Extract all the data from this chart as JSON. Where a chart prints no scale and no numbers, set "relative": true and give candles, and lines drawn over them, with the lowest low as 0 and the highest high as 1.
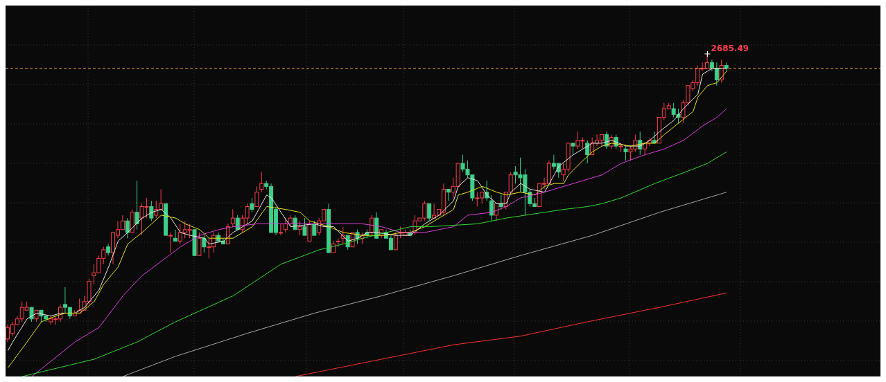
{
  "chart_data": {
    "type": "candlestick",
    "relative": true,
    "grid": true,
    "marker": "none",
    "categories": [
      null,
      null,
      null,
      null,
      null,
      null,
      null,
      null,
      null,
      null,
      null,
      null,
      null,
      null,
      null,
      null,
      null,
      null,
      null,
      null,
      null,
      null,
      null,
      null,
      null,
      null,
      null,
      null,
      null,
      null,
      null,
      null,
      null,
      null,
      null,
      null,
      null,
      null,
      null,
      null,
      null,
      null,
      null,
      null,
      null,
      null,
      null,
      null,
      null,
      null,
      null,
      null,
      null,
      null,
      null,
      null,
      null,
      null,
      null,
      null,
      null,
      null,
      null,
      null,
      null,
      null,
      null,
      null,
      null,
      null,
      null,
      null,
      null,
      null,
      null,
      null,
      null,
      null,
      null,
      null,
      null,
      null,
      null,
      null,
      null,
      null,
      null,
      null,
      null,
      null,
      null,
      null,
      null,
      null,
      null,
      null,
      null,
      null,
      null,
      null,
      null,
      null,
      null,
      null,
      null,
      null,
      null,
      null,
      null,
      null,
      null,
      null,
      null,
      null,
      null,
      null,
      null,
      null,
      null,
      null,
      null,
      null,
      null,
      null,
      null,
      null,
      null,
      null,
      null,
      null,
      null,
      null,
      null,
      null,
      null,
      null,
      null,
      null,
      null,
      null,
      null,
      null,
      null,
      null,
      null,
      null,
      null,
      null,
      null,
      null,
      null
    ],
    "ohlc": [
      [
        0.01,
        0.06,
        0,
        0.05
      ],
      [
        0.03,
        0.07,
        0.02,
        0.06
      ],
      [
        0.06,
        0.09,
        0.06,
        0.08
      ],
      [
        0.08,
        0.14,
        0.07,
        0.12
      ],
      [
        0.11,
        0.14,
        0.11,
        0.12
      ],
      [
        0.12,
        0.12,
        0.07,
        0.08
      ],
      [
        0.08,
        0.11,
        0.07,
        0.11
      ],
      [
        0.11,
        0.11,
        0.07,
        0.09
      ],
      [
        0.09,
        0.09,
        0.07,
        0.08
      ],
      [
        0.07,
        0.09,
        0.06,
        0.08
      ],
      [
        0.08,
        0.09,
        0.06,
        0.08
      ],
      [
        0.08,
        0.13,
        0.07,
        0.12
      ],
      [
        0.13,
        0.19,
        0.1,
        0.12
      ],
      [
        0.12,
        0.12,
        0.08,
        0.09
      ],
      [
        0.09,
        0.11,
        0.09,
        0.1
      ],
      [
        0.1,
        0.15,
        0.1,
        0.11
      ],
      [
        0.11,
        0.16,
        0.11,
        0.14
      ],
      [
        0.14,
        0.22,
        0.13,
        0.21
      ],
      [
        0.23,
        0.27,
        0.2,
        0.24
      ],
      [
        0.24,
        0.3,
        0.24,
        0.29
      ],
      [
        0.29,
        0.33,
        0.27,
        0.32
      ],
      [
        0.33,
        0.34,
        0.3,
        0.31
      ],
      [
        0.31,
        0.38,
        0.27,
        0.38
      ],
      [
        0.37,
        0.42,
        0.36,
        0.39
      ],
      [
        0.39,
        0.44,
        0.39,
        0.42
      ],
      [
        0.42,
        0.43,
        0.36,
        0.38
      ],
      [
        0.38,
        0.46,
        0.38,
        0.45
      ],
      [
        0.45,
        0.56,
        0.39,
        0.41
      ],
      [
        0.43,
        0.48,
        0.37,
        0.47
      ],
      [
        0.47,
        0.5,
        0.43,
        0.47
      ],
      [
        0.47,
        0.49,
        0.42,
        0.43
      ],
      [
        0.44,
        0.49,
        0.43,
        0.46
      ],
      [
        0.46,
        0.53,
        0.46,
        0.48
      ],
      [
        0.48,
        0.48,
        0.37,
        0.37
      ],
      [
        0.37,
        0.38,
        0.31,
        0.37
      ],
      [
        0.36,
        0.39,
        0.35,
        0.35
      ],
      [
        0.35,
        0.41,
        0.34,
        0.38
      ],
      [
        0.38,
        0.42,
        0.36,
        0.39
      ],
      [
        0.39,
        0.41,
        0.36,
        0.39
      ],
      [
        0.39,
        0.39,
        0.3,
        0.3
      ],
      [
        0.3,
        0.38,
        0.3,
        0.36
      ],
      [
        0.36,
        0.37,
        0.31,
        0.33
      ],
      [
        0.33,
        0.36,
        0.29,
        0.33
      ],
      [
        0.33,
        0.38,
        0.31,
        0.37
      ],
      [
        0.37,
        0.38,
        0.35,
        0.35
      ],
      [
        0.35,
        0.36,
        0.34,
        0.34
      ],
      [
        0.34,
        0.41,
        0.34,
        0.4
      ],
      [
        0.41,
        0.46,
        0.4,
        0.43
      ],
      [
        0.43,
        0.44,
        0.39,
        0.39
      ],
      [
        0.39,
        0.44,
        0.38,
        0.43
      ],
      [
        0.43,
        0.48,
        0.41,
        0.47
      ],
      [
        0.48,
        0.5,
        0.45,
        0.46
      ],
      [
        0.47,
        0.54,
        0.47,
        0.52
      ],
      [
        0.53,
        0.59,
        0.52,
        0.55
      ],
      [
        0.55,
        0.56,
        0.53,
        0.54
      ],
      [
        0.54,
        0.55,
        0.38,
        0.38
      ],
      [
        0.46,
        0.47,
        0.37,
        0.38
      ],
      [
        0.38,
        0.41,
        0.37,
        0.38
      ],
      [
        0.39,
        0.43,
        0.38,
        0.41
      ],
      [
        0.41,
        0.44,
        0.4,
        0.43
      ],
      [
        0.43,
        0.44,
        0.39,
        0.39
      ],
      [
        0.39,
        0.42,
        0.37,
        0.4
      ],
      [
        0.4,
        0.43,
        0.37,
        0.37
      ],
      [
        0.35,
        0.42,
        0.35,
        0.41
      ],
      [
        0.41,
        0.42,
        0.37,
        0.37
      ],
      [
        0.38,
        0.43,
        0.37,
        0.42
      ],
      [
        0.42,
        0.46,
        0.42,
        0.46
      ],
      [
        0.46,
        0.48,
        0.31,
        0.31
      ],
      [
        0.31,
        0.35,
        0.31,
        0.34
      ],
      [
        0.35,
        0.36,
        0.33,
        0.35
      ],
      [
        0.36,
        0.4,
        0.34,
        0.37
      ],
      [
        0.37,
        0.37,
        0.32,
        0.33
      ],
      [
        0.33,
        0.38,
        0.33,
        0.38
      ],
      [
        0.38,
        0.39,
        0.34,
        0.36
      ],
      [
        0.36,
        0.38,
        0.34,
        0.37
      ],
      [
        0.38,
        0.39,
        0.36,
        0.37
      ],
      [
        0.38,
        0.44,
        0.37,
        0.43
      ],
      [
        0.43,
        0.45,
        0.36,
        0.36
      ],
      [
        0.37,
        0.39,
        0.36,
        0.39
      ],
      [
        0.38,
        0.39,
        0.36,
        0.36
      ],
      [
        0.36,
        0.37,
        0.32,
        0.32
      ],
      [
        0.32,
        0.38,
        0.32,
        0.37
      ],
      [
        0.38,
        0.4,
        0.36,
        0.38
      ],
      [
        0.37,
        0.39,
        0.37,
        0.38
      ],
      [
        0.38,
        0.39,
        0.37,
        0.37
      ],
      [
        0.38,
        0.44,
        0.37,
        0.42
      ],
      [
        0.42,
        0.43,
        0.42,
        0.43
      ],
      [
        0.43,
        0.49,
        0.42,
        0.48
      ],
      [
        0.48,
        0.48,
        0.42,
        0.43
      ],
      [
        0.43,
        0.48,
        0.43,
        0.44
      ],
      [
        0.44,
        0.46,
        0.44,
        0.46
      ],
      [
        0.45,
        0.55,
        0.44,
        0.53
      ],
      [
        0.53,
        0.53,
        0.49,
        0.52
      ],
      [
        0.52,
        0.57,
        0.5,
        0.54
      ],
      [
        0.54,
        0.62,
        0.54,
        0.62
      ],
      [
        0.62,
        0.65,
        0.59,
        0.6
      ],
      [
        0.6,
        0.63,
        0.57,
        0.58
      ],
      [
        0.58,
        0.58,
        0.49,
        0.5
      ],
      [
        0.5,
        0.52,
        0.47,
        0.5
      ],
      [
        0.5,
        0.52,
        0.48,
        0.52
      ],
      [
        0.52,
        0.56,
        0.49,
        0.5
      ],
      [
        0.49,
        0.51,
        0.42,
        0.44
      ],
      [
        0.44,
        0.48,
        0.42,
        0.48
      ],
      [
        0.48,
        0.51,
        0.46,
        0.47
      ],
      [
        0.47,
        0.52,
        0.46,
        0.52
      ],
      [
        0.52,
        0.59,
        0.51,
        0.58
      ],
      [
        0.59,
        0.61,
        0.55,
        0.58
      ],
      [
        0.58,
        0.64,
        0.52,
        0.57
      ],
      [
        0.58,
        0.6,
        0.44,
        0.52
      ],
      [
        0.52,
        0.53,
        0.47,
        0.48
      ],
      [
        0.48,
        0.5,
        0.47,
        0.47
      ],
      [
        0.47,
        0.55,
        0.47,
        0.55
      ],
      [
        0.55,
        0.57,
        0.53,
        0.55
      ],
      [
        0.55,
        0.63,
        0.55,
        0.62
      ],
      [
        0.62,
        0.65,
        0.6,
        0.61
      ],
      [
        0.62,
        0.62,
        0.57,
        0.59
      ],
      [
        0.58,
        0.62,
        0.56,
        0.6
      ],
      [
        0.6,
        0.69,
        0.59,
        0.69
      ],
      [
        0.69,
        0.69,
        0.65,
        0.68
      ],
      [
        0.68,
        0.73,
        0.67,
        0.7
      ],
      [
        0.7,
        0.71,
        0.67,
        0.7
      ],
      [
        0.69,
        0.7,
        0.62,
        0.65
      ],
      [
        0.65,
        0.71,
        0.65,
        0.69
      ],
      [
        0.69,
        0.72,
        0.68,
        0.7
      ],
      [
        0.7,
        0.72,
        0.68,
        0.72
      ],
      [
        0.72,
        0.73,
        0.67,
        0.68
      ],
      [
        0.68,
        0.72,
        0.67,
        0.71
      ],
      [
        0.71,
        0.72,
        0.67,
        0.68
      ],
      [
        0.68,
        0.69,
        0.66,
        0.68
      ],
      [
        0.67,
        0.68,
        0.63,
        0.66
      ],
      [
        0.66,
        0.68,
        0.63,
        0.67
      ],
      [
        0.67,
        0.72,
        0.66,
        0.7
      ],
      [
        0.7,
        0.73,
        0.65,
        0.67
      ],
      [
        0.67,
        0.69,
        0.65,
        0.69
      ],
      [
        0.69,
        0.71,
        0.68,
        0.7
      ],
      [
        0.7,
        0.73,
        0.69,
        0.69
      ],
      [
        0.69,
        0.78,
        0.69,
        0.78
      ],
      [
        0.78,
        0.83,
        0.77,
        0.81
      ],
      [
        0.81,
        0.83,
        0.81,
        0.82
      ],
      [
        0.81,
        0.83,
        0.78,
        0.79
      ],
      [
        0.79,
        0.81,
        0.76,
        0.78
      ],
      [
        0.78,
        0.84,
        0.76,
        0.83
      ],
      [
        0.83,
        0.89,
        0.82,
        0.89
      ],
      [
        0.88,
        0.91,
        0.87,
        0.9
      ],
      [
        0.9,
        0.96,
        0.89,
        0.95
      ],
      [
        0.95,
        0.97,
        0.94,
        0.95
      ],
      [
        0.95,
        1,
        0.95,
        0.97
      ],
      [
        0.97,
        0.98,
        0.94,
        0.95
      ],
      [
        0.95,
        0.97,
        0.89,
        0.91
      ],
      [
        0.91,
        0.98,
        0.9,
        0.96
      ],
      [
        0.96,
        0.97,
        0.94,
        0.95
      ]
    ],
    "series": [
      {
        "type": "line",
        "color": "#e8e8e8",
        "values": [
          -0.03,
          0.0,
          null,
          null,
          0.08,
          null,
          0.1,
          null,
          null,
          0.09,
          null,
          0.1,
          null,
          null,
          0.1,
          null,
          0.12,
          null,
          null,
          0.18,
          null,
          0.26,
          null,
          0.35,
          null,
          0.38,
          null,
          null,
          0.43,
          null,
          0.45,
          null,
          0.46,
          null,
          0.43,
          null,
          0.38,
          null,
          0.37,
          null,
          null,
          0.36,
          0.34,
          null,
          null,
          0.35,
          null,
          0.38,
          null,
          null,
          null,
          0.42,
          null,
          null,
          0.51,
          0.5,
          null,
          0.45,
          null,
          0.4,
          null,
          null,
          null,
          null,
          0.41,
          null,
          0.4,
          null,
          0.4,
          null,
          null,
          0.35,
          null,
          0.36,
          null,
          0.38,
          null,
          0.38,
          null,
          null,
          null,
          0.37,
          null,
          null,
          0.37,
          null,
          null,
          0.41,
          null,
          null,
          0.44,
          null,
          null,
          0.49,
          0.54,
          null,
          0.57,
          null,
          0.56,
          null,
          0.51,
          null,
          0.48,
          null,
          0.48,
          0.52,
          null,
          0.55,
          null,
          0.53,
          null,
          null,
          0.52,
          null,
          0.58,
          0.61,
          null,
          null,
          0.65,
          null,
          0.67,
          null,
          0.69,
          null,
          0.69,
          null,
          0.7,
          null,
          null,
          0.68,
          null,
          null,
          0.68,
          null,
          0.7,
          null,
          0.73,
          null,
          null,
          0.77,
          null,
          0.81,
          null,
          null,
          0.86,
          0.93,
          null,
          0.95,
          null,
          0.95,
          0.95
        ]
      },
      {
        "type": "line",
        "color": "#e6e619",
        "values": [
          -0.09,
          null,
          null,
          null,
          0.0,
          null,
          null,
          0.07,
          null,
          null,
          0.09,
          null,
          0.1,
          null,
          null,
          0.1,
          null,
          null,
          0.14,
          null,
          0.2,
          null,
          null,
          0.26,
          null,
          0.34,
          null,
          null,
          0.38,
          null,
          0.41,
          null,
          0.44,
          null,
          null,
          0.43,
          null,
          0.41,
          null,
          null,
          0.39,
          null,
          0.36,
          null,
          0.36,
          null,
          null,
          0.36,
          null,
          null,
          null,
          0.4,
          null,
          null,
          0.47,
          null,
          null,
          null,
          0.46,
          null,
          null,
          0.45,
          null,
          0.42,
          null,
          0.41,
          null,
          0.4,
          null,
          null,
          0.38,
          null,
          null,
          null,
          0.37,
          null,
          null,
          null,
          null,
          0.37,
          null,
          null,
          0.38,
          null,
          0.38,
          null,
          null,
          0.4,
          null,
          null,
          0.43,
          null,
          null,
          0.46,
          0.51,
          null,
          0.52,
          null,
          null,
          0.54,
          null,
          null,
          0.52,
          null,
          0.51,
          null,
          null,
          0.52,
          null,
          null,
          0.51,
          null,
          0.54,
          null,
          0.55,
          null,
          0.55,
          0.58,
          null,
          null,
          0.63,
          null,
          0.66,
          null,
          0.68,
          null,
          0.69,
          null,
          null,
          null,
          0.68,
          null,
          null,
          0.69,
          null,
          0.69,
          null,
          0.72,
          null,
          null,
          0.76,
          null,
          null,
          0.8,
          0.85,
          null,
          0.89,
          null,
          0.9,
          null,
          0.94
        ]
      },
      {
        "type": "line",
        "color": "#e040e0",
        "values": [
          null,
          null,
          null,
          null,
          null,
          -0.12,
          null,
          null,
          null,
          null,
          null,
          null,
          null,
          null,
          0.0,
          null,
          null,
          null,
          null,
          0.05,
          null,
          null,
          null,
          null,
          0.16,
          null,
          null,
          null,
          0.23,
          null,
          null,
          null,
          0.28,
          null,
          null,
          null,
          0.33,
          null,
          null,
          null,
          0.37,
          null,
          null,
          null,
          0.39,
          null,
          null,
          0.4,
          null,
          null,
          null,
          null,
          0.41,
          null,
          null,
          null,
          0.41,
          null,
          null,
          null,
          null,
          0.41,
          null,
          null,
          null,
          0.41,
          null,
          null,
          null,
          null,
          null,
          null,
          null,
          null,
          0.41,
          null,
          null,
          null,
          0.4,
          null,
          null,
          null,
          0.38,
          null,
          null,
          null,
          null,
          0.38,
          null,
          null,
          0.39,
          null,
          null,
          0.4,
          null,
          null,
          0.44,
          null,
          null,
          null,
          null,
          0.45,
          null,
          null,
          0.47,
          null,
          null,
          0.5,
          null,
          null,
          null,
          null,
          0.52,
          null,
          null,
          null,
          0.54,
          null,
          null,
          null,
          0.56,
          null,
          null,
          null,
          0.58,
          null,
          null,
          null,
          0.62,
          null,
          null,
          null,
          null,
          0.65,
          null,
          null,
          null,
          0.67,
          null,
          null,
          null,
          0.7,
          null,
          null,
          null,
          0.75,
          null,
          null,
          0.78,
          null,
          0.81
        ]
      },
      {
        "type": "line",
        "color": "#33dd33",
        "values": [
          null,
          null,
          null,
          -0.12,
          null,
          null,
          null,
          null,
          null,
          null,
          null,
          null,
          null,
          null,
          null,
          null,
          null,
          null,
          -0.06,
          null,
          null,
          null,
          null,
          null,
          null,
          null,
          null,
          0.0,
          null,
          null,
          null,
          null,
          null,
          null,
          null,
          0.07,
          null,
          null,
          null,
          null,
          null,
          null,
          null,
          null,
          null,
          null,
          null,
          0.16,
          null,
          null,
          null,
          null,
          null,
          null,
          null,
          null,
          null,
          0.27,
          null,
          null,
          null,
          null,
          null,
          null,
          null,
          0.32,
          null,
          null,
          null,
          null,
          0.34,
          null,
          null,
          null,
          0.36,
          null,
          null,
          null,
          null,
          0.38,
          null,
          null,
          null,
          null,
          0.4,
          null,
          null,
          null,
          0.4,
          null,
          null,
          null,
          null,
          null,
          null,
          null,
          null,
          null,
          0.41,
          null,
          null,
          null,
          null,
          null,
          0.43,
          null,
          null,
          null,
          0.44,
          null,
          null,
          null,
          0.45,
          null,
          null,
          null,
          0.46,
          null,
          null,
          null,
          null,
          0.47,
          null,
          null,
          0.48,
          null,
          null,
          null,
          0.5,
          null,
          null,
          null,
          null,
          null,
          null,
          0.55,
          null,
          null,
          null,
          null,
          null,
          null,
          null,
          0.6,
          null,
          null,
          0.62,
          null,
          null,
          null,
          0.66
        ]
      },
      {
        "type": "line",
        "color": "#a8a8a8",
        "values": [
          null,
          null,
          null,
          null,
          null,
          null,
          null,
          null,
          null,
          null,
          null,
          null,
          null,
          null,
          null,
          null,
          null,
          null,
          null,
          null,
          null,
          null,
          null,
          null,
          -0.12,
          null,
          null,
          null,
          null,
          null,
          null,
          null,
          null,
          null,
          null,
          -0.05,
          null,
          null,
          null,
          null,
          null,
          null,
          null,
          null,
          null,
          null,
          null,
          null,
          null,
          null,
          0.03,
          null,
          null,
          null,
          null,
          null,
          null,
          null,
          null,
          null,
          null,
          null,
          null,
          null,
          0.1,
          null,
          null,
          null,
          null,
          null,
          null,
          null,
          null,
          null,
          null,
          null,
          null,
          null,
          0.16,
          null,
          null,
          null,
          null,
          null,
          null,
          null,
          null,
          null,
          null,
          null,
          null,
          null,
          null,
          0.23,
          null,
          null,
          null,
          null,
          null,
          null,
          null,
          null,
          null,
          null,
          null,
          null,
          null,
          0.3,
          null,
          null,
          null,
          null,
          null,
          null,
          null,
          null,
          null,
          null,
          null,
          null,
          null,
          null,
          0.37,
          null,
          null,
          null,
          null,
          null,
          null,
          null,
          null,
          null,
          null,
          null,
          null,
          null,
          0.45,
          null,
          null,
          null,
          null,
          null,
          null,
          null,
          null,
          null,
          null,
          null,
          null,
          null,
          0.52
        ]
      },
      {
        "type": "line",
        "color": "#ff3030",
        "values": [
          null,
          null,
          null,
          null,
          null,
          null,
          null,
          null,
          null,
          null,
          null,
          null,
          null,
          null,
          null,
          null,
          null,
          null,
          null,
          null,
          null,
          null,
          null,
          null,
          null,
          null,
          null,
          null,
          null,
          null,
          null,
          null,
          null,
          null,
          null,
          null,
          null,
          null,
          null,
          null,
          null,
          null,
          null,
          null,
          null,
          null,
          null,
          null,
          null,
          null,
          null,
          null,
          null,
          null,
          null,
          null,
          null,
          null,
          null,
          null,
          -0.12,
          null,
          null,
          null,
          null,
          null,
          null,
          null,
          null,
          null,
          null,
          null,
          null,
          null,
          null,
          null,
          null,
          null,
          -0.06,
          null,
          null,
          null,
          null,
          null,
          null,
          null,
          null,
          null,
          null,
          null,
          null,
          null,
          null,
          -0.01,
          null,
          null,
          null,
          null,
          null,
          null,
          null,
          null,
          null,
          null,
          null,
          null,
          null,
          0.02,
          null,
          null,
          null,
          null,
          null,
          null,
          null,
          null,
          null,
          null,
          null,
          null,
          null,
          0.07,
          null,
          null,
          null,
          null,
          null,
          null,
          null,
          null,
          null,
          null,
          null,
          null,
          null,
          null,
          0.12,
          null,
          null,
          null,
          null,
          null,
          null,
          null,
          null,
          null,
          null,
          null,
          null,
          null,
          0.17
        ]
      }
    ],
    "ref_lines": [
      {
        "axis": "y",
        "value": 0.95,
        "color": "#f0a050",
        "line_style": "dashed"
      }
    ],
    "annotations": [
      "2685.49"
    ]
  }
}
